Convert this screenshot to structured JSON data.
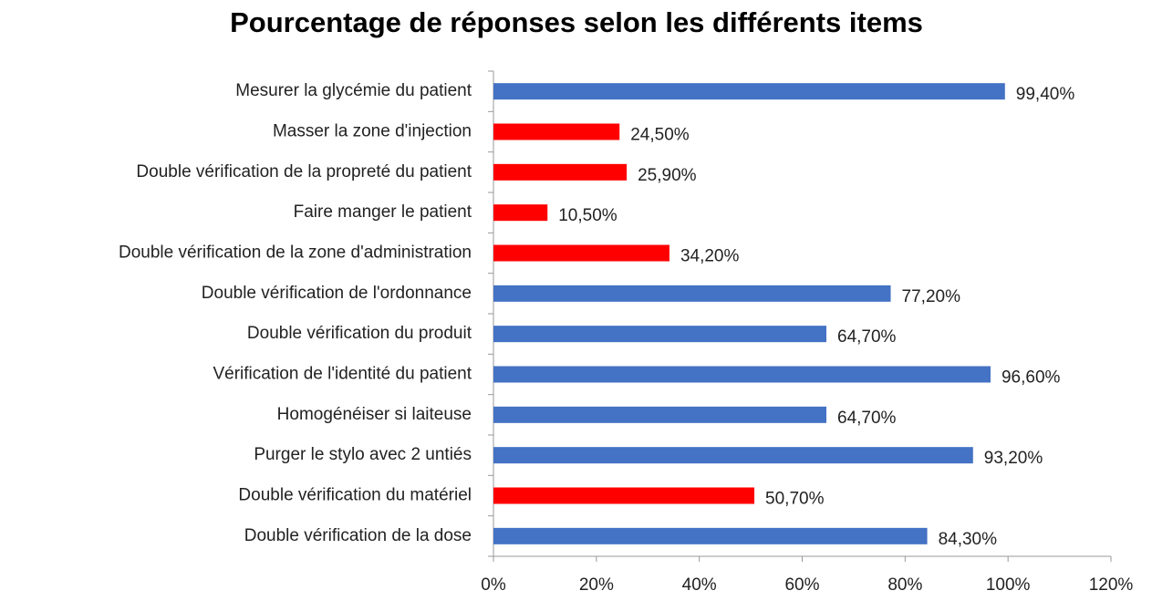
{
  "chart_data": {
    "type": "hbar",
    "title": "Pourcentage de réponses selon les différents items",
    "categories": [
      "Mesurer la glycémie du patient",
      "Masser la zone d'injection",
      "Double vérification de la propreté du patient",
      "Faire manger le patient",
      "Double vérification de la zone d'administration",
      "Double vérification de l'ordonnance",
      "Double vérification du produit",
      "Vérification de l'identité du patient",
      "Homogénéiser si laiteuse",
      "Purger le stylo avec 2 untiés",
      "Double vérification du matériel",
      "Double vérification de la dose"
    ],
    "values": [
      99.4,
      24.5,
      25.9,
      10.5,
      34.2,
      77.2,
      64.7,
      96.6,
      64.7,
      93.2,
      50.7,
      84.3
    ],
    "value_labels": [
      "99,40%",
      "24,50%",
      "25,90%",
      "10,50%",
      "34,20%",
      "77,20%",
      "64,70%",
      "96,60%",
      "64,70%",
      "93,20%",
      "50,70%",
      "84,30%"
    ],
    "colors": [
      "#4472c4",
      "#ff0000",
      "#ff0000",
      "#ff0000",
      "#ff0000",
      "#4472c4",
      "#4472c4",
      "#4472c4",
      "#4472c4",
      "#4472c4",
      "#ff0000",
      "#4472c4"
    ],
    "xlim": [
      0,
      120
    ],
    "xticks": [
      {
        "value": 0,
        "label": "0%"
      },
      {
        "value": 20,
        "label": "20%"
      },
      {
        "value": 40,
        "label": "40%"
      },
      {
        "value": 60,
        "label": "60%"
      },
      {
        "value": 80,
        "label": "80%"
      },
      {
        "value": 100,
        "label": "100%"
      },
      {
        "value": 120,
        "label": "120%"
      }
    ]
  }
}
